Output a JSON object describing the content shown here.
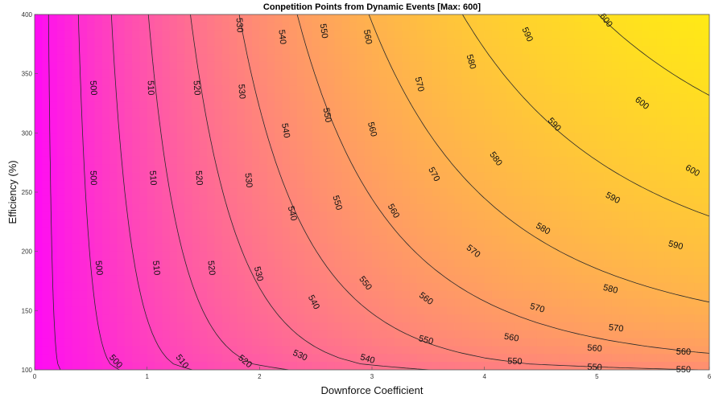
{
  "chart_data": {
    "type": "contour",
    "title": "Conpetition Points from Dynamic Events [Max: 600]",
    "xlabel": "Downforce Coefficient",
    "ylabel": "Efficiency (%)",
    "xlim": [
      0,
      6
    ],
    "ylim": [
      100,
      400
    ],
    "x_ticks": [
      "0",
      "1",
      "2",
      "3",
      "4",
      "5",
      "6"
    ],
    "y_ticks": [
      "100",
      "150",
      "200",
      "250",
      "300",
      "350",
      "400"
    ],
    "colormap": "spring",
    "color_low": "#ff00ff",
    "color_high": "#ffff00",
    "z_range": [
      490,
      605
    ],
    "contour_levels": [
      500,
      510,
      520,
      530,
      540,
      550,
      560,
      570,
      580,
      590,
      600
    ],
    "contour_labels": [
      {
        "text": "500",
        "x": 0.52,
        "y": 338,
        "rot": 86
      },
      {
        "text": "500",
        "x": 0.52,
        "y": 262,
        "rot": 88
      },
      {
        "text": "500",
        "x": 0.57,
        "y": 186,
        "rot": 84
      },
      {
        "text": "500",
        "x": 0.72,
        "y": 107,
        "rot": 48
      },
      {
        "text": "510",
        "x": 1.03,
        "y": 338,
        "rot": 88
      },
      {
        "text": "510",
        "x": 1.05,
        "y": 262,
        "rot": 86
      },
      {
        "text": "510",
        "x": 1.08,
        "y": 186,
        "rot": 84
      },
      {
        "text": "510",
        "x": 1.31,
        "y": 107,
        "rot": 52
      },
      {
        "text": "520",
        "x": 1.44,
        "y": 338,
        "rot": 86
      },
      {
        "text": "520",
        "x": 1.46,
        "y": 262,
        "rot": 86
      },
      {
        "text": "520",
        "x": 1.57,
        "y": 186,
        "rot": 84
      },
      {
        "text": "520",
        "x": 1.87,
        "y": 107,
        "rot": 40
      },
      {
        "text": "530",
        "x": 1.82,
        "y": 391,
        "rot": 86
      },
      {
        "text": "530",
        "x": 1.84,
        "y": 335,
        "rot": 86
      },
      {
        "text": "530",
        "x": 1.9,
        "y": 260,
        "rot": 84
      },
      {
        "text": "530",
        "x": 1.99,
        "y": 181,
        "rot": 76
      },
      {
        "text": "530",
        "x": 2.36,
        "y": 112,
        "rot": 24
      },
      {
        "text": "540",
        "x": 2.2,
        "y": 381,
        "rot": 84
      },
      {
        "text": "540",
        "x": 2.23,
        "y": 302,
        "rot": 80
      },
      {
        "text": "540",
        "x": 2.29,
        "y": 232,
        "rot": 76
      },
      {
        "text": "540",
        "x": 2.48,
        "y": 157,
        "rot": 62
      },
      {
        "text": "540",
        "x": 2.96,
        "y": 109,
        "rot": 16
      },
      {
        "text": "550",
        "x": 2.57,
        "y": 386,
        "rot": 82
      },
      {
        "text": "550",
        "x": 2.6,
        "y": 315,
        "rot": 80
      },
      {
        "text": "550",
        "x": 2.69,
        "y": 241,
        "rot": 74
      },
      {
        "text": "550",
        "x": 2.94,
        "y": 173,
        "rot": 52
      },
      {
        "text": "550",
        "x": 3.48,
        "y": 125,
        "rot": 14
      },
      {
        "text": "550",
        "x": 4.27,
        "y": 107,
        "rot": 3
      },
      {
        "text": "550",
        "x": 4.98,
        "y": 102,
        "rot": 2
      },
      {
        "text": "550",
        "x": 5.77,
        "y": 100,
        "rot": 1
      },
      {
        "text": "560",
        "x": 2.96,
        "y": 381,
        "rot": 80
      },
      {
        "text": "560",
        "x": 3.0,
        "y": 303,
        "rot": 76
      },
      {
        "text": "560",
        "x": 3.19,
        "y": 234,
        "rot": 60
      },
      {
        "text": "560",
        "x": 3.48,
        "y": 160,
        "rot": 36
      },
      {
        "text": "560",
        "x": 4.24,
        "y": 127,
        "rot": 10
      },
      {
        "text": "560",
        "x": 4.98,
        "y": 118,
        "rot": 4
      },
      {
        "text": "560",
        "x": 5.77,
        "y": 115,
        "rot": 2
      },
      {
        "text": "570",
        "x": 3.42,
        "y": 341,
        "rot": 76
      },
      {
        "text": "570",
        "x": 3.55,
        "y": 265,
        "rot": 62
      },
      {
        "text": "570",
        "x": 3.9,
        "y": 200,
        "rot": 38
      },
      {
        "text": "570",
        "x": 4.47,
        "y": 152,
        "rot": 16
      },
      {
        "text": "570",
        "x": 5.17,
        "y": 135,
        "rot": 6
      },
      {
        "text": "580",
        "x": 3.88,
        "y": 360,
        "rot": 74
      },
      {
        "text": "580",
        "x": 4.1,
        "y": 278,
        "rot": 54
      },
      {
        "text": "580",
        "x": 4.52,
        "y": 219,
        "rot": 30
      },
      {
        "text": "580",
        "x": 5.12,
        "y": 168,
        "rot": 14
      },
      {
        "text": "590",
        "x": 4.38,
        "y": 383,
        "rot": 66
      },
      {
        "text": "590",
        "x": 4.62,
        "y": 307,
        "rot": 48
      },
      {
        "text": "590",
        "x": 5.14,
        "y": 245,
        "rot": 28
      },
      {
        "text": "590",
        "x": 5.7,
        "y": 205,
        "rot": 14
      },
      {
        "text": "600",
        "x": 5.08,
        "y": 395,
        "rot": 52
      },
      {
        "text": "600",
        "x": 5.4,
        "y": 325,
        "rot": 38
      },
      {
        "text": "600",
        "x": 5.85,
        "y": 268,
        "rot": 30
      }
    ]
  }
}
